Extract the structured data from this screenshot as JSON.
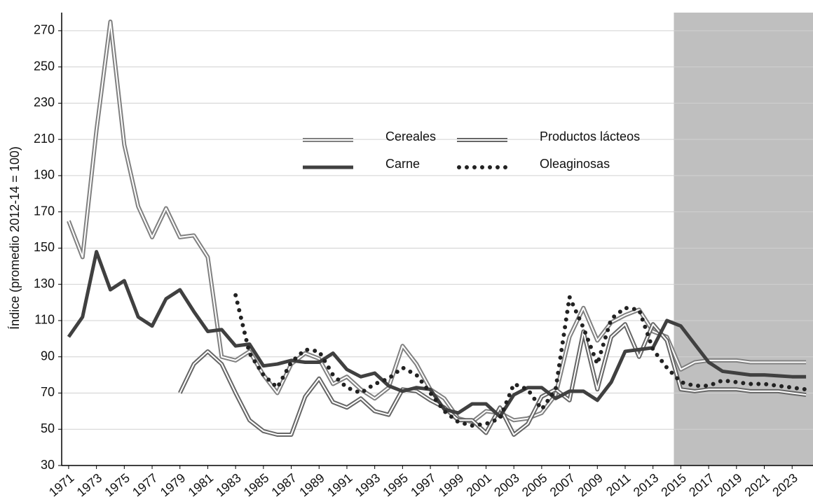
{
  "chart_data": {
    "type": "line",
    "y_label": "Índice (promedio 2012-14 = 100)",
    "x": [
      1971,
      1972,
      1973,
      1974,
      1975,
      1976,
      1977,
      1978,
      1979,
      1980,
      1981,
      1982,
      1983,
      1984,
      1985,
      1986,
      1987,
      1988,
      1989,
      1990,
      1991,
      1992,
      1993,
      1994,
      1995,
      1996,
      1997,
      1998,
      1999,
      2000,
      2001,
      2002,
      2003,
      2004,
      2005,
      2006,
      2007,
      2008,
      2009,
      2010,
      2011,
      2012,
      2013,
      2014,
      2015,
      2016,
      2017,
      2018,
      2019,
      2020,
      2021,
      2022,
      2023,
      2024
    ],
    "xlim": [
      1970.5,
      2024.5
    ],
    "xticks": [
      1971,
      1973,
      1975,
      1977,
      1979,
      1981,
      1983,
      1985,
      1987,
      1989,
      1991,
      1993,
      1995,
      1997,
      1999,
      2001,
      2003,
      2005,
      2007,
      2009,
      2011,
      2013,
      2015,
      2017,
      2019,
      2021,
      2023
    ],
    "ylim": [
      30,
      280
    ],
    "yticks": [
      30,
      50,
      70,
      90,
      110,
      130,
      150,
      170,
      190,
      210,
      230,
      250,
      270
    ],
    "grid": true,
    "shaded_from": 2014.5,
    "shade_color": "#bfbfbf",
    "series": [
      {
        "name": "Cereales",
        "color": "#808080",
        "style": "double",
        "values": [
          165,
          145,
          215,
          275,
          207,
          173,
          156,
          172,
          156,
          157,
          145,
          90,
          88,
          93,
          80,
          70,
          86,
          92,
          89,
          75,
          79,
          72,
          67,
          73,
          96,
          86,
          72,
          67,
          56,
          54,
          60,
          59,
          55,
          56,
          59,
          69,
          101,
          117,
          99,
          109,
          113,
          116,
          104,
          101,
          83,
          87,
          88,
          88,
          88,
          87,
          87,
          87,
          87,
          87
        ]
      },
      {
        "name": "Productos lácteos",
        "color": "#666666",
        "style": "double",
        "values": [
          null,
          null,
          null,
          null,
          null,
          null,
          null,
          null,
          70,
          86,
          93,
          86,
          70,
          55,
          49,
          47,
          47,
          68,
          78,
          65,
          62,
          67,
          60,
          58,
          72,
          71,
          66,
          62,
          55,
          55,
          48,
          62,
          47,
          53,
          68,
          72,
          66,
          104,
          72,
          101,
          108,
          90,
          108,
          99,
          72,
          71,
          72,
          72,
          72,
          71,
          71,
          71,
          70,
          69
        ]
      },
      {
        "name": "Carne",
        "color": "#404040",
        "style": "solid",
        "values": [
          101,
          112,
          148,
          127,
          132,
          112,
          107,
          122,
          127,
          115,
          104,
          105,
          96,
          97,
          85,
          86,
          88,
          87,
          87,
          92,
          83,
          79,
          81,
          74,
          71,
          73,
          72,
          61,
          59,
          64,
          64,
          57,
          69,
          73,
          73,
          67,
          71,
          71,
          66,
          76,
          93,
          94,
          95,
          110,
          107,
          97,
          87,
          82,
          81,
          80,
          80,
          79.5,
          79,
          79
        ]
      },
      {
        "name": "Oleaginosas",
        "color": "#222222",
        "style": "dotted",
        "values": [
          null,
          null,
          null,
          null,
          null,
          null,
          null,
          null,
          null,
          null,
          null,
          null,
          124,
          92,
          80,
          73,
          87,
          94,
          93,
          80,
          73,
          70,
          75,
          78,
          84,
          80,
          70,
          60,
          54,
          52,
          53,
          56,
          75,
          72,
          61,
          72,
          123,
          106,
          86,
          111,
          117,
          116,
          94,
          84,
          76,
          74,
          74,
          77,
          76,
          75,
          75,
          74,
          73,
          72
        ]
      }
    ]
  }
}
